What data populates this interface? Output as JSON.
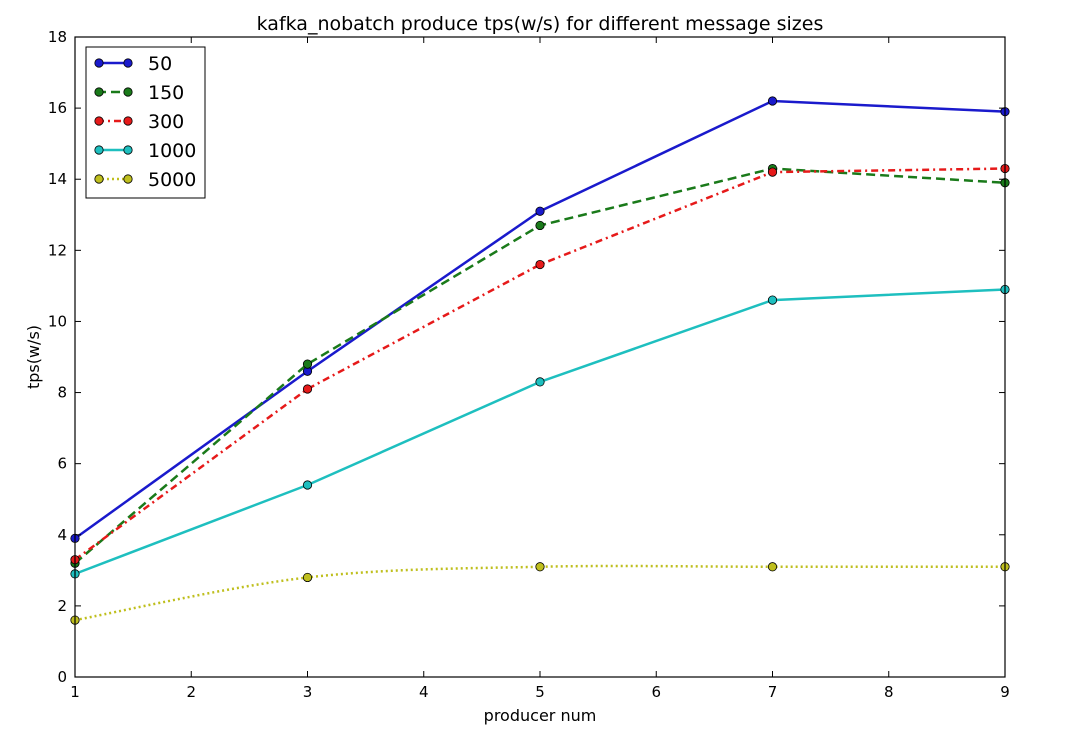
{
  "chart_data": {
    "type": "line",
    "title": "kafka_nobatch produce tps(w/s) for different message sizes",
    "xlabel": "producer num",
    "ylabel": "tps(w/s)",
    "xlim": [
      1,
      9
    ],
    "ylim": [
      0,
      18
    ],
    "xticks": [
      1,
      2,
      3,
      4,
      5,
      6,
      7,
      8,
      9
    ],
    "yticks": [
      0,
      2,
      4,
      6,
      8,
      10,
      12,
      14,
      16,
      18
    ],
    "x": [
      1,
      3,
      5,
      7,
      9
    ],
    "legend_position": "top-left",
    "grid": false,
    "series": [
      {
        "name": "50",
        "values": [
          3.9,
          8.6,
          13.1,
          16.2,
          15.9
        ],
        "color": "#1a1acc",
        "style": "solid",
        "interp": "linear"
      },
      {
        "name": "150",
        "values": [
          3.2,
          8.8,
          12.7,
          14.3,
          13.9
        ],
        "color": "#1a7a1a",
        "style": "dashed",
        "interp": "linear"
      },
      {
        "name": "300",
        "values": [
          3.3,
          8.1,
          11.6,
          14.2,
          14.3
        ],
        "color": "#e61a1a",
        "style": "dashdot",
        "interp": "linear"
      },
      {
        "name": "1000",
        "values": [
          2.9,
          5.4,
          8.3,
          10.6,
          10.9
        ],
        "color": "#1ebfbf",
        "style": "solid",
        "interp": "linear"
      },
      {
        "name": "5000",
        "values": [
          1.6,
          2.8,
          3.1,
          3.1,
          3.1
        ],
        "color": "#bfbf1e",
        "style": "dotted",
        "interp": "smooth"
      }
    ]
  }
}
